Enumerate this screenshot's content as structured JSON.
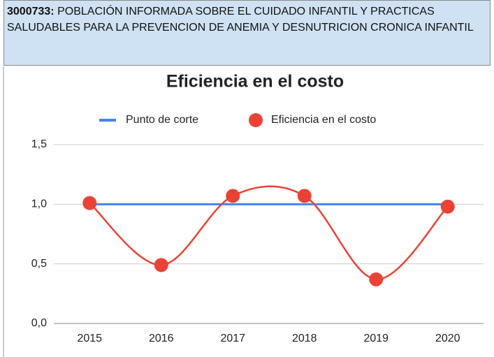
{
  "header": {
    "code": "3000733:",
    "title": "POBLACIÓN INFORMADA SOBRE EL CUIDADO INFANTIL Y PRACTICAS SALUDABLES PARA LA PREVENCION DE ANEMIA Y DESNUTRICION CRONICA INFANTIL"
  },
  "chart_data": {
    "type": "line",
    "title": "Eficiencia en el costo",
    "categories": [
      "2015",
      "2016",
      "2017",
      "2018",
      "2019",
      "2020"
    ],
    "series": [
      {
        "name": "Punto de corte",
        "color": "#4285f4",
        "values": [
          1,
          1,
          1,
          1,
          1,
          1
        ]
      },
      {
        "name": "Eficiencia en el costo",
        "color": "#ea4335",
        "values": [
          1.01,
          0.49,
          1.07,
          1.07,
          0.37,
          0.98
        ],
        "smooth": true,
        "markers": true
      }
    ],
    "ylim": [
      0,
      1.5
    ],
    "yticks": [
      {
        "value": 0,
        "label": "0,0"
      },
      {
        "value": 0.5,
        "label": "0,5"
      },
      {
        "value": 1,
        "label": "1,0"
      },
      {
        "value": 1.5,
        "label": "1,5"
      }
    ],
    "grid": true,
    "legend": "top"
  }
}
